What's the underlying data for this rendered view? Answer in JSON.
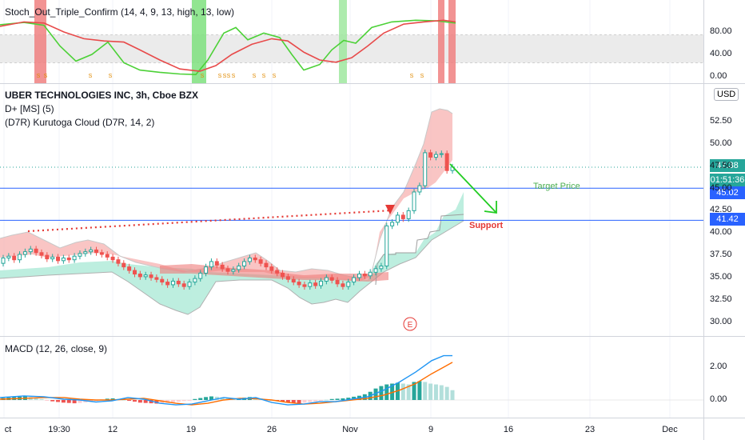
{
  "panes": {
    "stoch_title": "Stoch_Out_Triple_Confirm (14, 4, 9, 13, high, 13, low)",
    "symbol_title": "UBER TECHNOLOGIES INC, 3h, Cboe BZX",
    "indicator_1": "D+ [MS] (5)",
    "indicator_2": "(D7R) Kurutoga Cloud (D7R, 14, 2)",
    "macd_title": "MACD (12, 26, close, 9)",
    "currency_button": "USD"
  },
  "price_tags": {
    "last_price": "47.38",
    "countdown": "01:51:36",
    "line_upper": "45.02",
    "line_lower": "41.42"
  },
  "annotations": {
    "target_price": "Target Price",
    "support": "Support",
    "earnings_marker": "E",
    "stoch_markers": "S"
  },
  "colors": {
    "up": "#26a69a",
    "down": "#ef5350",
    "stoch_k": "#4cd137",
    "stoch_d": "#e84a4a",
    "macd_line": "#2196f3",
    "signal_line": "#ff6d00",
    "hline": "#2962ff",
    "target_arrow": "#22cc22",
    "dotted_trend": "#e53935"
  },
  "chart_data": [
    {
      "type": "line",
      "name": "stoch",
      "y_ticks": [
        "80.00",
        "40.00",
        "0.00"
      ],
      "ylim": [
        0,
        100
      ]
    },
    {
      "type": "candlestick",
      "name": "price",
      "y_ticks": [
        "52.50",
        "50.00",
        "47.50",
        "45.00",
        "42.50",
        "40.00",
        "37.50",
        "35.00",
        "32.50",
        "30.00"
      ],
      "ylim": [
        28.5,
        55
      ],
      "horizontal_lines": [
        45.02,
        41.42
      ],
      "last_price": 47.38
    },
    {
      "type": "bar",
      "name": "macd",
      "y_ticks": [
        "2.00",
        "0.00"
      ],
      "ylim": [
        -0.7,
        3.2
      ]
    }
  ],
  "x_ticks": [
    "ct",
    "19:30",
    "12",
    "19",
    "26",
    "Nov",
    "9",
    "16",
    "23",
    "Dec"
  ]
}
